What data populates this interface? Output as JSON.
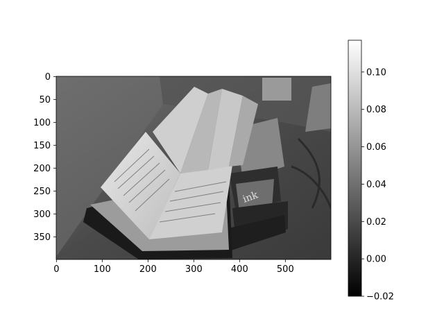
{
  "chart_data": {
    "type": "heatmap",
    "colormap": "gray",
    "image_shape": [
      400,
      600
    ],
    "x_ticks": [
      0,
      100,
      200,
      300,
      400,
      500
    ],
    "y_ticks": [
      0,
      50,
      100,
      150,
      200,
      250,
      300,
      350
    ],
    "xlim": [
      -0.5,
      599.5
    ],
    "ylim": [
      399.5,
      -0.5
    ],
    "colorbar": {
      "range": [
        -0.02,
        0.117
      ],
      "ticks": [
        -0.02,
        0.0,
        0.02,
        0.04,
        0.06,
        0.08,
        0.1
      ],
      "tick_labels": [
        "−0.02",
        "0.00",
        "0.02",
        "0.04",
        "0.06",
        "0.08",
        "0.10"
      ]
    },
    "image_content": {
      "subject": "open notebooks and stacked boxes on a desk",
      "label_on_box": "ink"
    }
  }
}
